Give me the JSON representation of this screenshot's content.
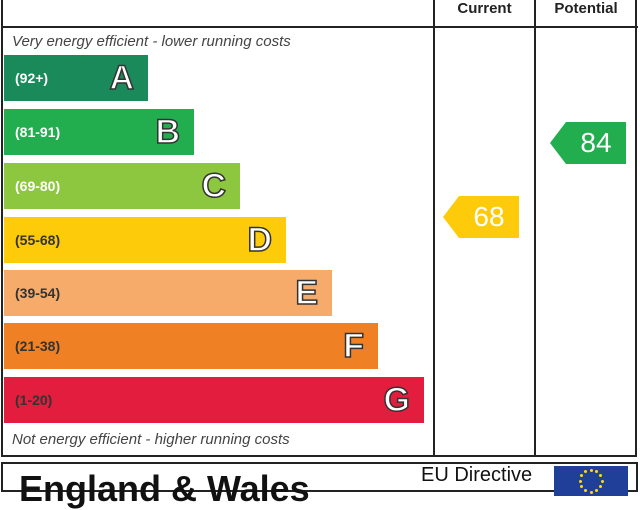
{
  "chart_data": {
    "type": "bar",
    "header": {
      "current": "Current",
      "potential": "Potential"
    },
    "top_note": "Very energy efficient - lower running costs",
    "bottom_note": "Not energy efficient - higher running costs",
    "bands": [
      {
        "letter": "A",
        "range": "(92+)",
        "color": "#1a8a5a"
      },
      {
        "letter": "B",
        "range": "(81-91)",
        "color": "#22ad4e"
      },
      {
        "letter": "C",
        "range": "(69-80)",
        "color": "#8dc63f"
      },
      {
        "letter": "D",
        "range": "(55-68)",
        "color": "#fecb0a"
      },
      {
        "letter": "E",
        "range": "(39-54)",
        "color": "#f7ab6a"
      },
      {
        "letter": "F",
        "range": "(21-38)",
        "color": "#ef8124"
      },
      {
        "letter": "G",
        "range": "(1-20)",
        "color": "#e21d3d"
      }
    ],
    "current": {
      "value": 68,
      "band": "D",
      "color": "#fecb0a"
    },
    "potential": {
      "value": 84,
      "band": "B",
      "color": "#22ad4e"
    }
  },
  "footer": {
    "title": "England & Wales",
    "eu": "EU Directive"
  }
}
